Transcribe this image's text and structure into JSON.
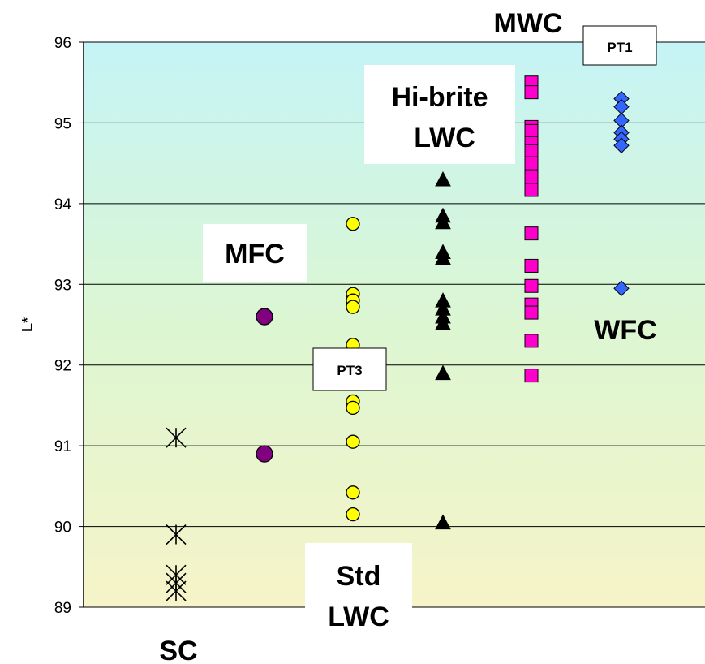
{
  "chart_data": {
    "type": "scatter",
    "title": "",
    "xlabel": "",
    "ylabel": "L*",
    "ylim": [
      89,
      96
    ],
    "yticks": [
      "89",
      "90",
      "91",
      "92",
      "93",
      "94",
      "95",
      "96"
    ],
    "grid": true,
    "legend": "none",
    "series": [
      {
        "name": "SC",
        "marker": "asterisk",
        "color": "#000000",
        "values": [
          91.1,
          89.9,
          89.4,
          89.3,
          89.2
        ]
      },
      {
        "name": "MFC",
        "marker": "circle",
        "color": "#800080",
        "values": [
          92.6,
          90.9
        ]
      },
      {
        "name": "Std LWC",
        "marker": "circle",
        "color": "#ffff00",
        "values": [
          93.75,
          92.88,
          92.8,
          92.72,
          92.25,
          91.55,
          91.47,
          91.05,
          90.42,
          90.15
        ]
      },
      {
        "name": "Hi-brite LWC",
        "marker": "triangle",
        "color": "#000000",
        "values": [
          94.3,
          93.85,
          93.77,
          93.4,
          93.33,
          92.8,
          92.7,
          92.6,
          92.52,
          91.9,
          90.05
        ]
      },
      {
        "name": "MWC",
        "marker": "square",
        "color": "#ff00cc",
        "values": [
          95.5,
          95.38,
          94.95,
          94.9,
          94.75,
          94.65,
          94.5,
          94.33,
          94.17,
          93.63,
          93.23,
          92.98,
          92.75,
          92.65,
          92.3,
          91.87
        ]
      },
      {
        "name": "WFC",
        "marker": "diamond",
        "color": "#3366ff",
        "values": [
          95.3,
          95.2,
          95.03,
          94.88,
          94.8,
          94.72,
          92.95
        ]
      }
    ],
    "annotations": {
      "sc": "SC",
      "mfc": "MFC",
      "std_lwc_1": "Std",
      "std_lwc_2": "LWC",
      "hibrite_1": "Hi-brite",
      "hibrite_2": "LWC",
      "mwc": "MWC",
      "wfc": "WFC",
      "pt1": "PT1",
      "pt3": "PT3"
    }
  },
  "axis_cut_text": "S"
}
